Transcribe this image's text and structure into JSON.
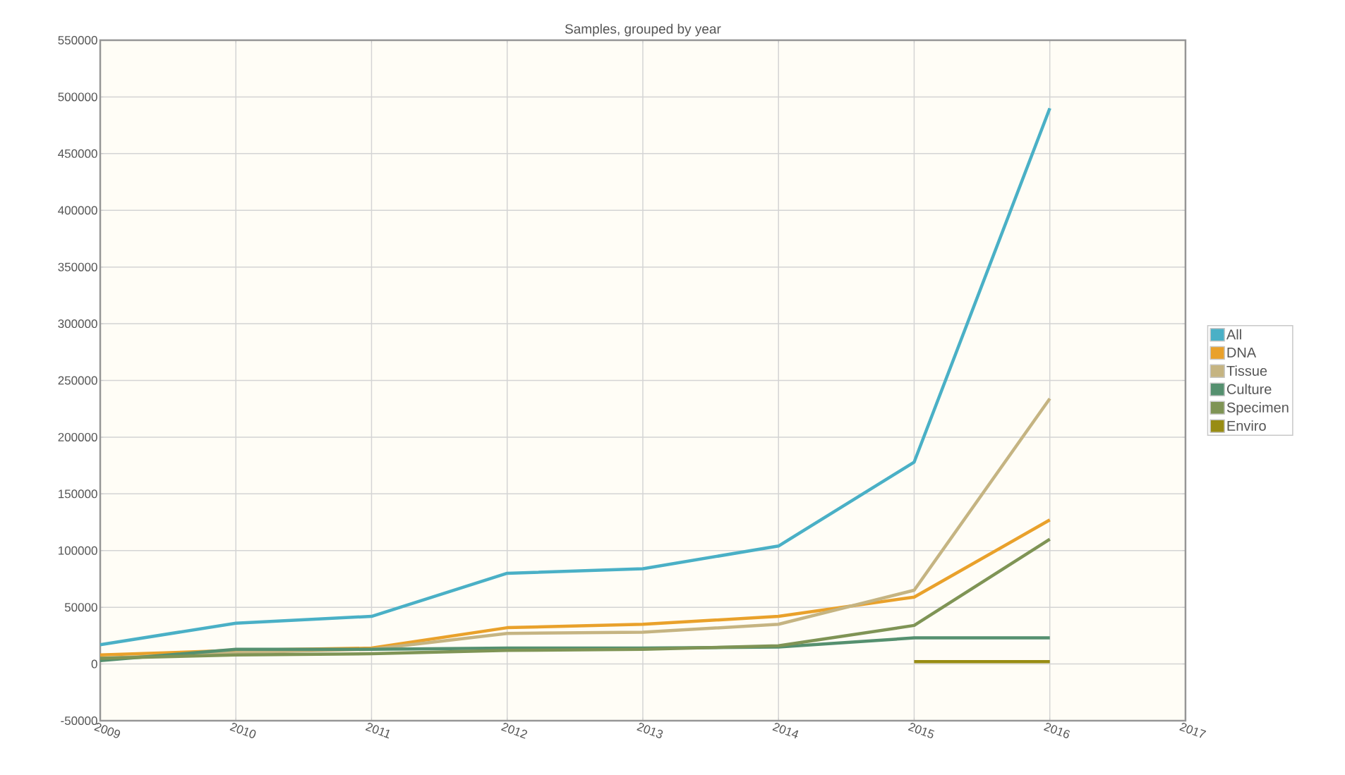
{
  "chart_data": {
    "type": "line",
    "title": "Samples, grouped by year",
    "x": [
      2009,
      2010,
      2011,
      2012,
      2013,
      2014,
      2015,
      2016
    ],
    "series": [
      {
        "name": "All",
        "color": "#4ab0c6",
        "values": [
          17000,
          36000,
          42000,
          80000,
          84000,
          104000,
          178000,
          490000
        ]
      },
      {
        "name": "DNA",
        "color": "#e9a12b",
        "values": [
          8000,
          12000,
          14000,
          32000,
          35000,
          42000,
          59000,
          127000
        ]
      },
      {
        "name": "Tissue",
        "color": "#c5b482",
        "values": [
          5000,
          10000,
          13000,
          27000,
          28000,
          35000,
          65000,
          234000
        ]
      },
      {
        "name": "Culture",
        "color": "#55906f",
        "values": [
          3000,
          13000,
          13000,
          14000,
          14000,
          15000,
          23000,
          23000
        ]
      },
      {
        "name": "Specimen",
        "color": "#7f9455",
        "values": [
          5000,
          8000,
          9000,
          12000,
          13000,
          16000,
          34000,
          110000
        ]
      },
      {
        "name": "Enviro",
        "color": "#988c14",
        "values": [
          null,
          null,
          null,
          null,
          null,
          null,
          2000,
          2000
        ]
      }
    ],
    "xlim": [
      2009,
      2017
    ],
    "xticks": [
      2009,
      2010,
      2011,
      2012,
      2013,
      2014,
      2015,
      2016,
      2017
    ],
    "ylim": [
      -50000,
      550000
    ],
    "yticks": [
      -50000,
      0,
      50000,
      100000,
      150000,
      200000,
      250000,
      300000,
      350000,
      400000,
      450000,
      500000,
      550000
    ],
    "grid": true,
    "legend": "right",
    "marker": "none",
    "line_style": "solid"
  }
}
